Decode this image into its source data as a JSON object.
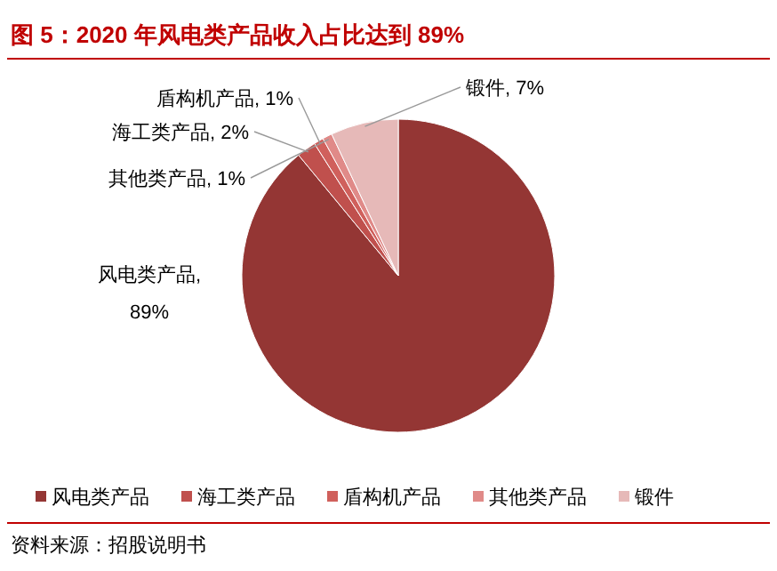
{
  "chart_data": {
    "type": "pie",
    "title": "图 5：2020 年风电类产品收入占比达到 89%",
    "categories": [
      "风电类产品",
      "海工类产品",
      "盾构机产品",
      "其他类产品",
      "锻件"
    ],
    "values": [
      89,
      2,
      1,
      1,
      7
    ],
    "colors": [
      "#943634",
      "#c0504d",
      "#d0605c",
      "#e08a88",
      "#e6b9b8"
    ],
    "value_labels": [
      "风电类产品, 89%",
      "海工类产品, 2%",
      "盾构机产品, 1%",
      "其他类产品, 1%",
      "锻件, 7%"
    ],
    "legend": "bottom",
    "annotations": [
      "资料来源：招股说明书"
    ]
  }
}
